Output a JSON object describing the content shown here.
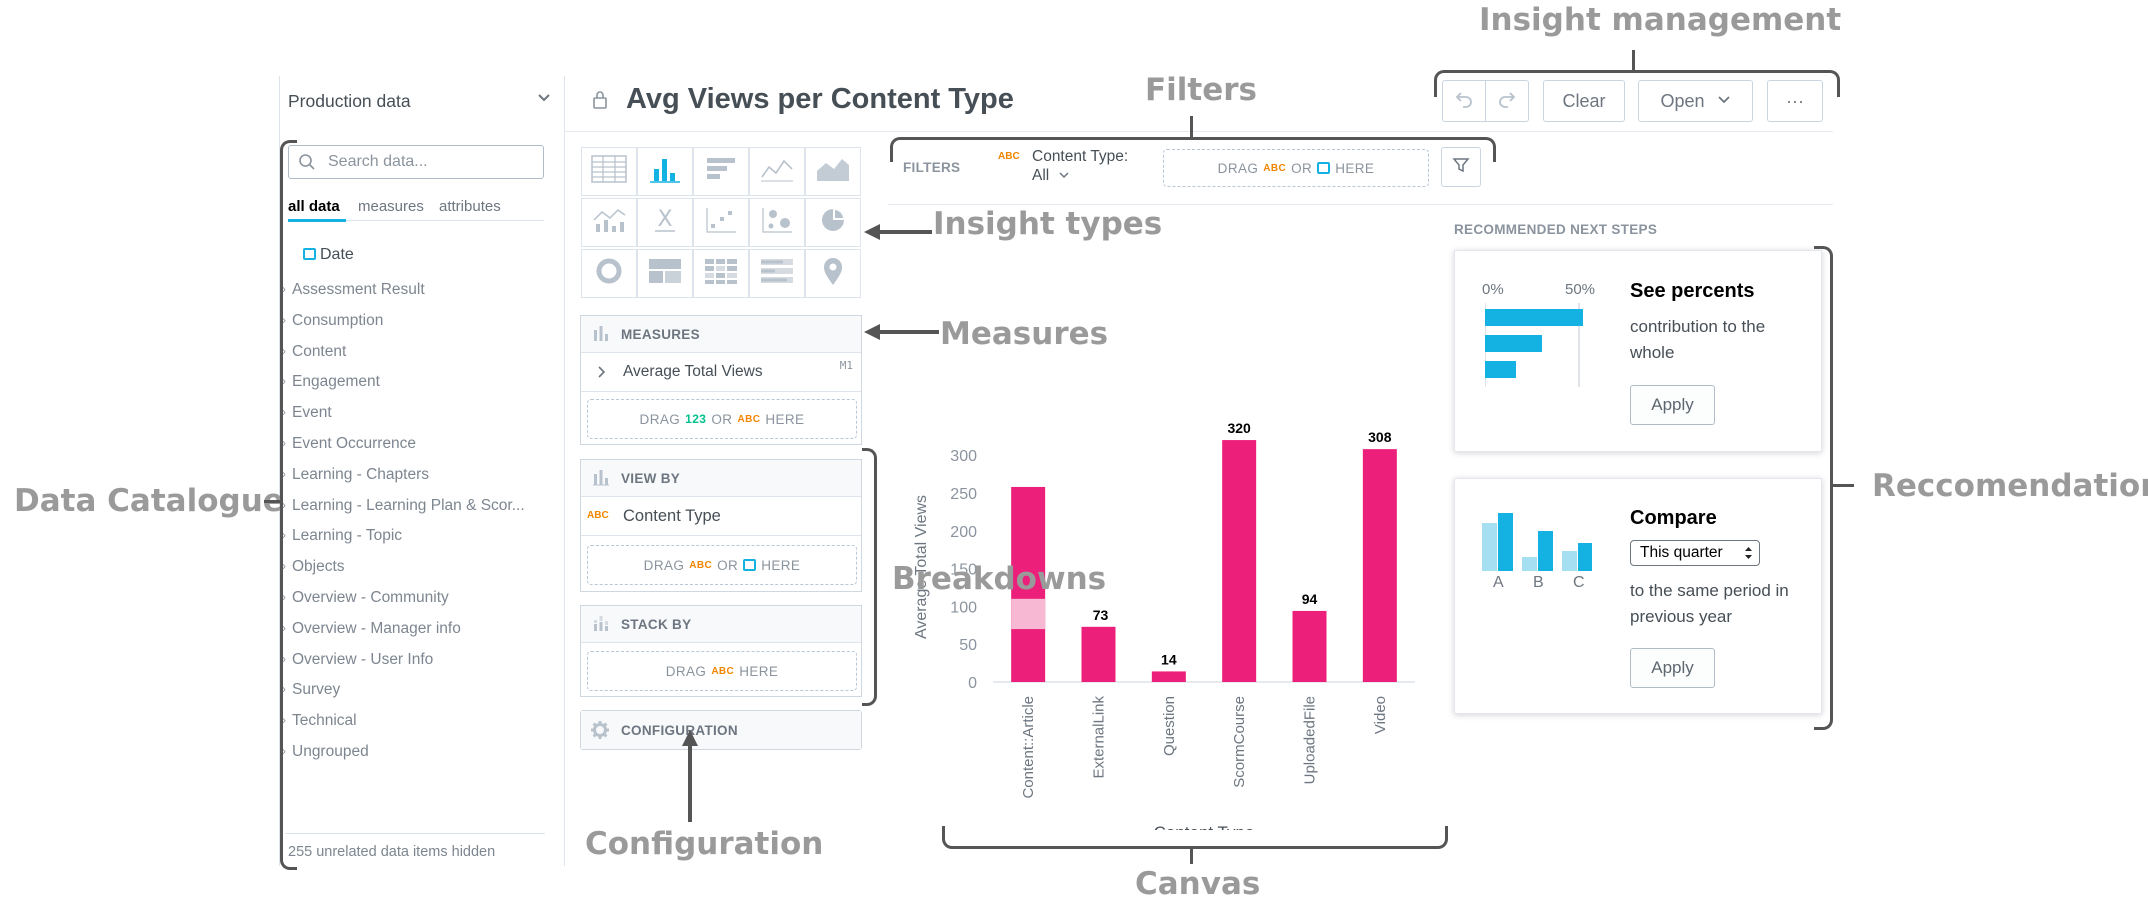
{
  "catalog": {
    "dataset": "Production data",
    "search_placeholder": "Search data...",
    "tabs": [
      "all data",
      "measures",
      "attributes"
    ],
    "date_item": "Date",
    "items": [
      "Assessment Result",
      "Consumption",
      "Content",
      "Engagement",
      "Event",
      "Event Occurrence",
      "Learning - Chapters",
      "Learning - Learning Plan & Scor...",
      "Learning - Topic",
      "Objects",
      "Overview - Community",
      "Overview - Manager info",
      "Overview - User Info",
      "Survey",
      "Technical",
      "Ungrouped"
    ],
    "footer": "255 unrelated data items hidden"
  },
  "insight": {
    "title": "Avg Views per Content Type"
  },
  "toolbar": {
    "clear": "Clear",
    "open": "Open",
    "more": "···"
  },
  "filters": {
    "label": "FILTERS",
    "chip_name": "Content Type:",
    "chip_value": "All",
    "drop": {
      "drag": "DRAG",
      "or": "OR",
      "here": "HERE"
    }
  },
  "buckets": {
    "measures": {
      "label": "MEASURES",
      "item": "Average Total Views",
      "item_tag": "M1"
    },
    "view_by": {
      "label": "VIEW BY",
      "item": "Content Type"
    },
    "stack_by": {
      "label": "STACK BY"
    },
    "configuration": {
      "label": "CONFIGURATION"
    },
    "drop": {
      "drag": "DRAG",
      "or": "OR",
      "here": "HERE",
      "num": "123",
      "abc": "ABC"
    }
  },
  "chart_data": {
    "type": "bar",
    "categories": [
      "Content::Article",
      "ExternalLink",
      "Question",
      "ScormCourse",
      "UploadedFile",
      "Video"
    ],
    "values": [
      258,
      73,
      14,
      320,
      94,
      308
    ],
    "data_labels": [
      "",
      "73",
      "14",
      "320",
      "94",
      "308"
    ],
    "xlabel": "Content Type",
    "ylabel": "Average Total Views",
    "yticks": [
      0,
      50,
      100,
      150,
      200,
      250,
      300
    ],
    "ylim": [
      0,
      330
    ],
    "bar_color": "#ec1f7a",
    "highlight": {
      "category": "Content::Article",
      "from": 70,
      "to": 110,
      "color": "#f7b8d4"
    }
  },
  "recommendations": {
    "header": "RECOMMENDED NEXT STEPS",
    "percent_card": {
      "axis_start": "0%",
      "axis_mid": "50%",
      "title": "See percents",
      "desc": "contribution to the whole",
      "button": "Apply"
    },
    "compare_card": {
      "title": "Compare",
      "select": "This quarter",
      "desc": "to the same period in previous year",
      "button": "Apply",
      "letters": [
        "A",
        "B",
        "C"
      ]
    }
  },
  "annotations": {
    "insight_management": "Insight management",
    "filters": "Filters",
    "insight_types": "Insight types",
    "measures": "Measures",
    "data_catalogue": "Data Catalogue",
    "breakdowns": "Breakdowns",
    "configuration": "Configuration",
    "canvas": "Canvas",
    "recommendations": "Reccomendations"
  },
  "colors": {
    "accent": "#14b2e2",
    "bar": "#ec1f7a",
    "annotation": "#9a9a9a"
  }
}
